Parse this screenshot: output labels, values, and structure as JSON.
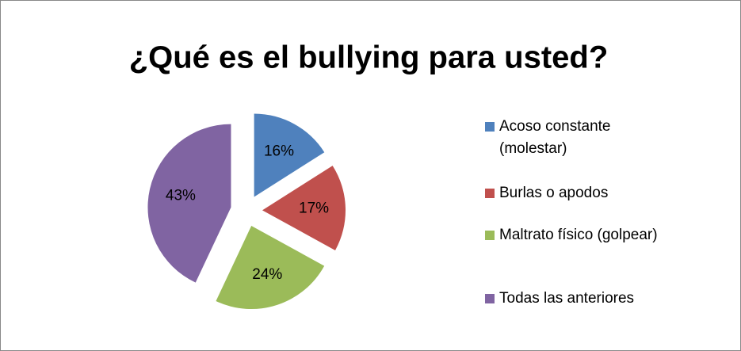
{
  "chart_data": {
    "type": "pie",
    "title": "¿Qué es el bullying para usted?",
    "categories": [
      "Acoso constante (molestar)",
      "Burlas o apodos",
      "Maltrato físico (golpear)",
      "Todas las anteriores"
    ],
    "values": [
      16,
      17,
      24,
      43
    ],
    "value_labels": [
      "16%",
      "17%",
      "24%",
      "43%"
    ],
    "colors": [
      "#4f81bd",
      "#c0504d",
      "#9bbb59",
      "#8064a2"
    ],
    "legend": "right",
    "exploded": true
  }
}
